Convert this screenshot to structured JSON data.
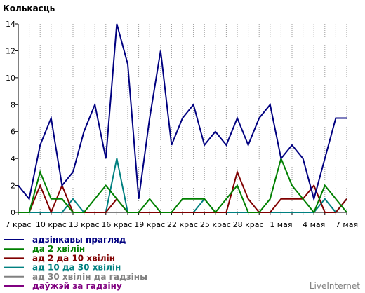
{
  "chart_data": {
    "type": "line",
    "ylabel": "Колькасць",
    "ylim": [
      0,
      14
    ],
    "yticks": [
      0,
      2,
      4,
      6,
      8,
      10,
      12,
      14
    ],
    "xtick_labels": [
      "7 крас",
      "10 крас",
      "13 крас",
      "16 крас",
      "19 крас",
      "22 крас",
      "25 крас",
      "28 крас",
      "1 мая",
      "4 мая",
      "7 мая"
    ],
    "xtick_index": [
      0,
      3,
      6,
      9,
      12,
      15,
      18,
      21,
      24,
      27,
      30
    ],
    "grid": "vertical-dashed",
    "legend_position": "bottom-left",
    "series": [
      {
        "name": "адзінкавы прагляд",
        "color": "#000080",
        "values": [
          2,
          1,
          5,
          7,
          2,
          3,
          6,
          8,
          4,
          14,
          11,
          1,
          7,
          12,
          5,
          7,
          8,
          5,
          6,
          5,
          7,
          5,
          7,
          8,
          4,
          5,
          4,
          1,
          4,
          7,
          7
        ]
      },
      {
        "name": "да 2 хвілін",
        "color": "#008000",
        "values": [
          0,
          0,
          3,
          1,
          1,
          0,
          0,
          1,
          2,
          1,
          0,
          0,
          1,
          0,
          0,
          1,
          1,
          1,
          0,
          1,
          2,
          0,
          0,
          1,
          4,
          2,
          1,
          0,
          2,
          1,
          0
        ]
      },
      {
        "name": "ад 2 да 10 хвілін",
        "color": "#800000",
        "values": [
          0,
          0,
          2,
          0,
          2,
          0,
          0,
          0,
          0,
          1,
          0,
          0,
          0,
          0,
          0,
          0,
          0,
          0,
          0,
          0,
          3,
          1,
          0,
          0,
          1,
          1,
          1,
          2,
          0,
          0,
          1
        ]
      },
      {
        "name": "ад 10 да 30 хвілін",
        "color": "#008080",
        "values": [
          0,
          0,
          0,
          0,
          0,
          1,
          0,
          0,
          0,
          4,
          0,
          0,
          0,
          0,
          0,
          0,
          0,
          1,
          0,
          0,
          0,
          0,
          0,
          0,
          0,
          0,
          0,
          0,
          1,
          0,
          1
        ]
      },
      {
        "name": "ад 30 хвілін да гадзіны",
        "color": "#808080",
        "values": [
          0,
          0,
          0,
          0,
          0,
          0,
          0,
          0,
          0,
          0,
          0,
          0,
          0,
          0,
          0,
          0,
          0,
          0,
          0,
          0,
          0,
          0,
          0,
          0,
          0,
          0,
          0,
          0,
          0,
          0,
          0
        ]
      },
      {
        "name": "даўжэй за гадзіну",
        "color": "#800080",
        "values": [
          0,
          0,
          0,
          0,
          0,
          0,
          0,
          0,
          0,
          0,
          0,
          0,
          0,
          0,
          0,
          0,
          0,
          0,
          0,
          0,
          0,
          0,
          0,
          0,
          0,
          0,
          0,
          0,
          0,
          0,
          0
        ]
      }
    ]
  },
  "brand": "LiveInternet"
}
